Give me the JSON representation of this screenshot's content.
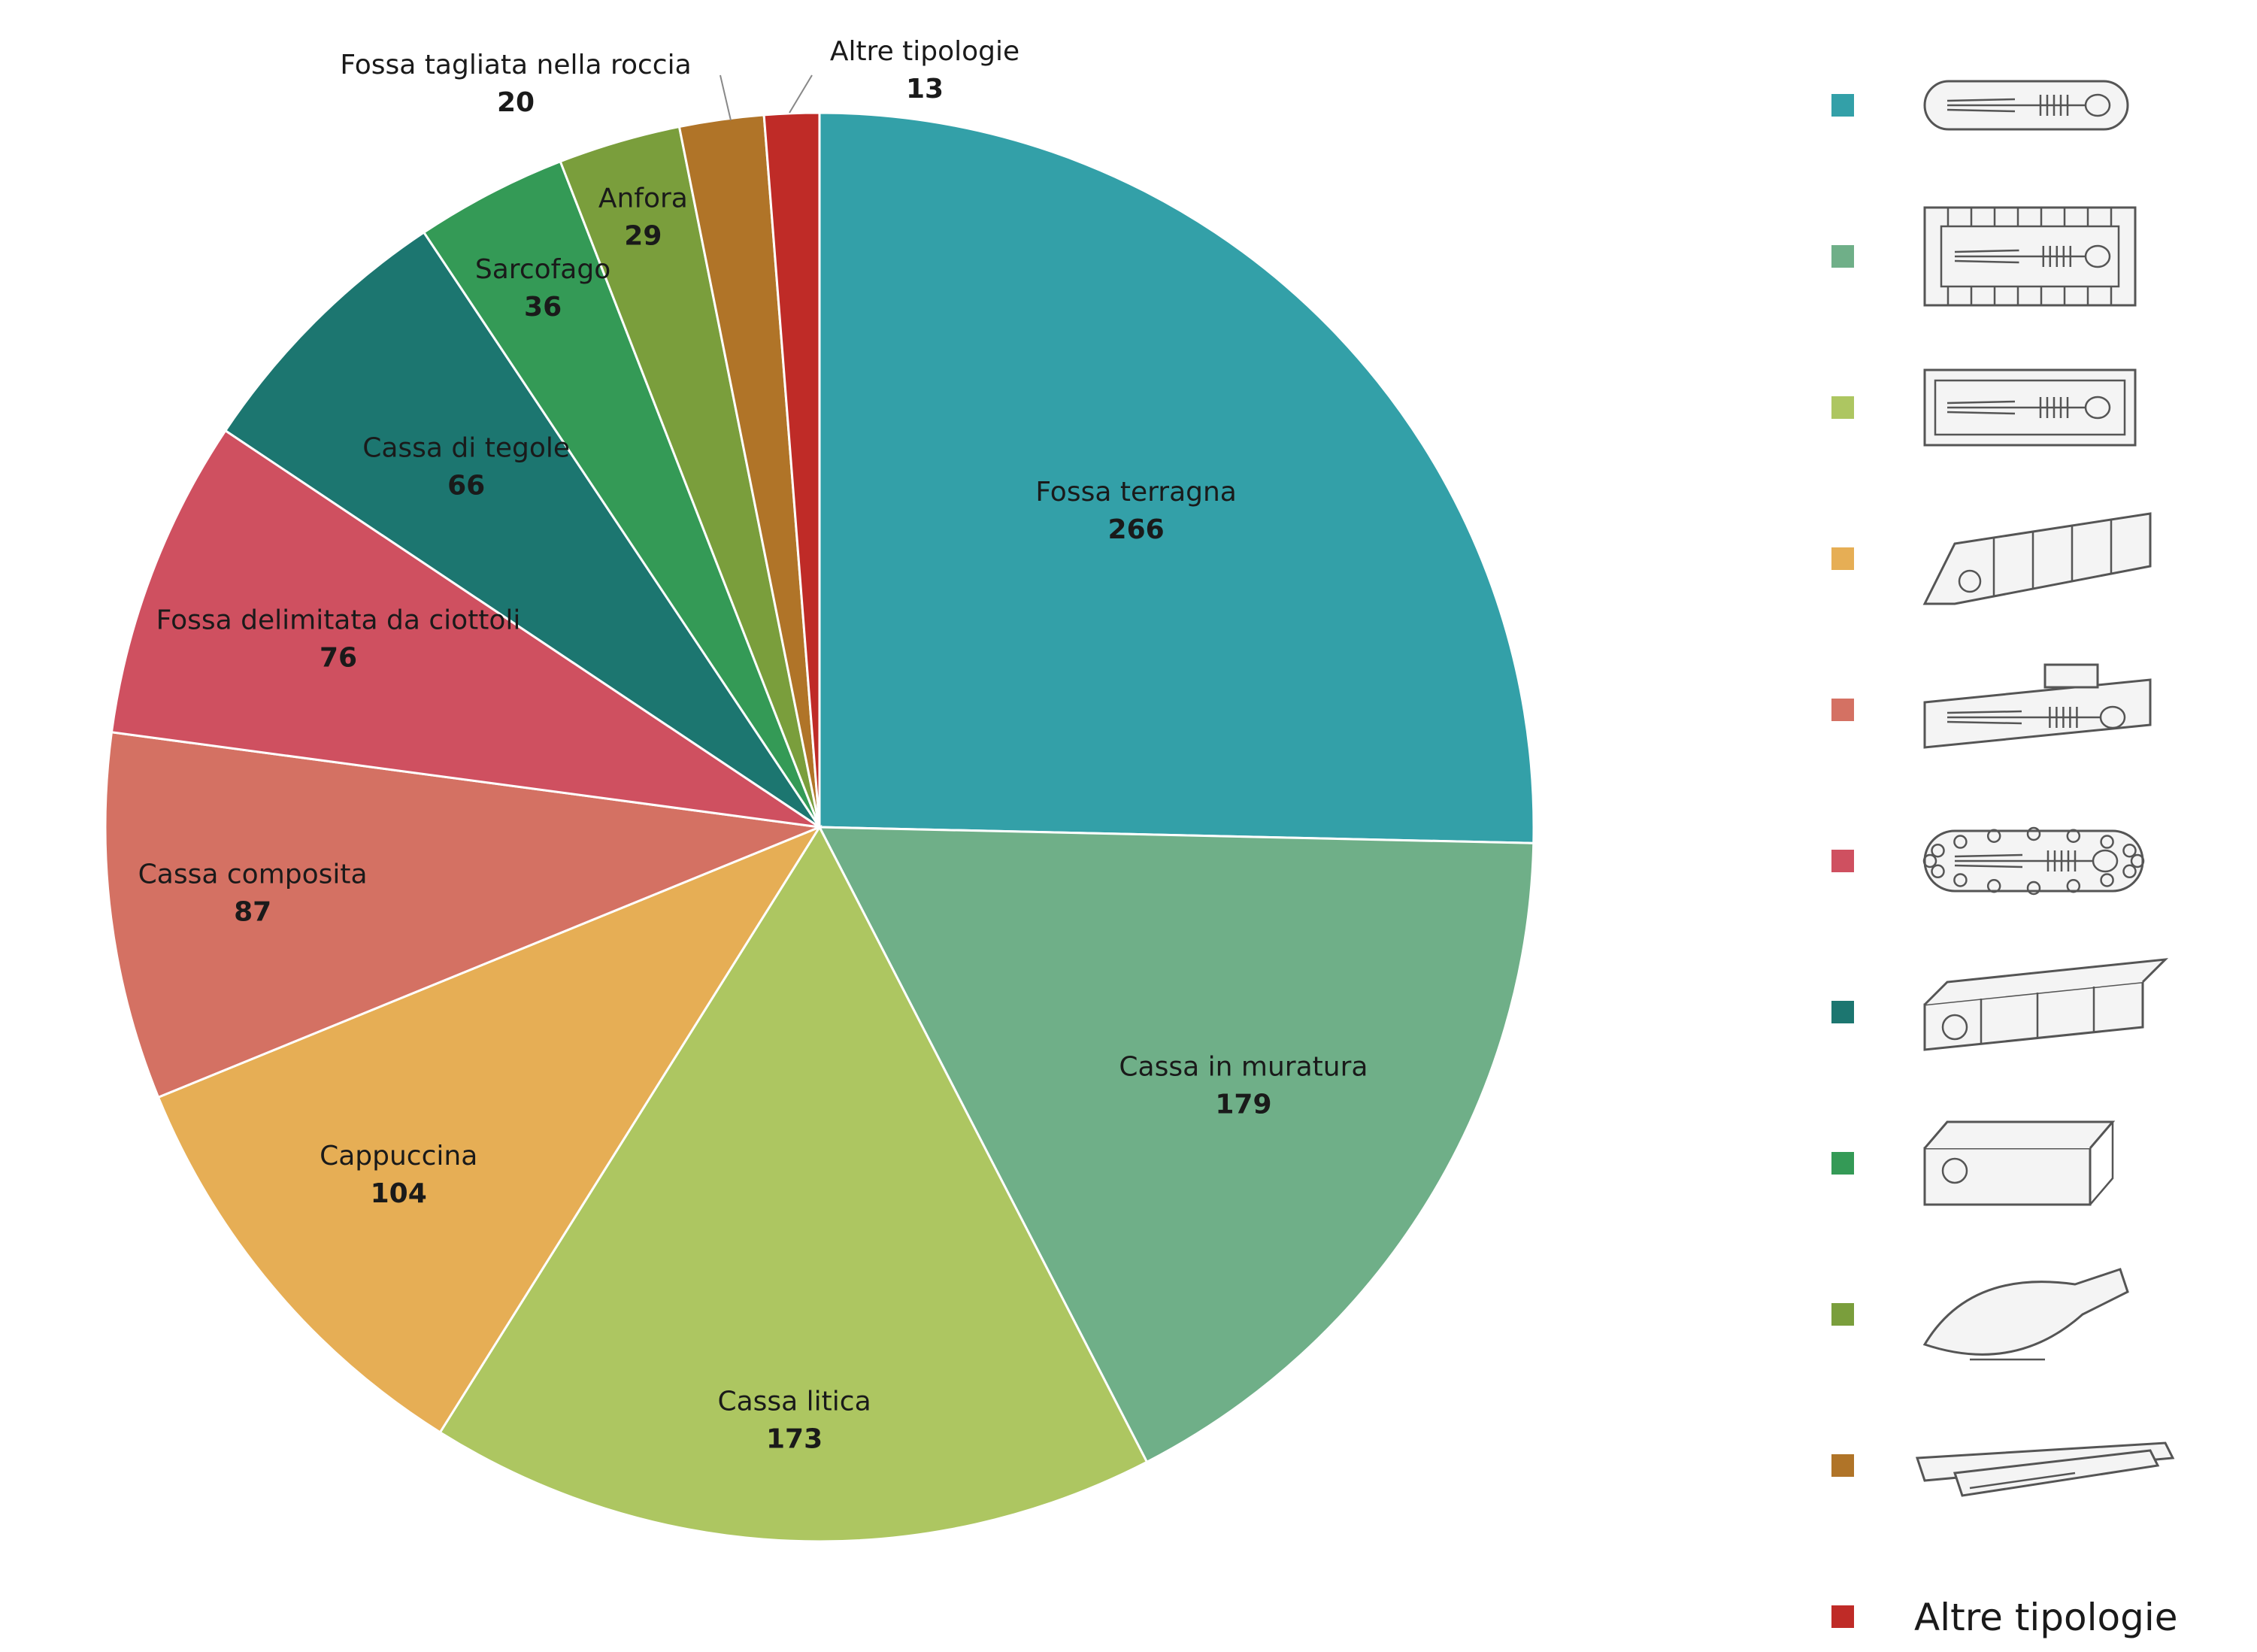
{
  "chart_data": {
    "type": "pie",
    "title": "",
    "slices": [
      {
        "label": "Fossa terragna",
        "value": 266,
        "color": "#33a0a8"
      },
      {
        "label": "Cassa in muratura",
        "value": 179,
        "color": "#6faf88"
      },
      {
        "label": "Cassa litica",
        "value": 173,
        "color": "#adc661"
      },
      {
        "label": "Cappuccina",
        "value": 104,
        "color": "#e6ae55"
      },
      {
        "label": "Cassa composita",
        "value": 87,
        "color": "#d47163"
      },
      {
        "label": "Fossa delimitata da ciottoli",
        "value": 76,
        "color": "#cf5060"
      },
      {
        "label": "Cassa di tegole",
        "value": 66,
        "color": "#1c7670"
      },
      {
        "label": "Sarcofago",
        "value": 36,
        "color": "#349a56"
      },
      {
        "label": "Anfora",
        "value": 29,
        "color": "#7a9e3c"
      },
      {
        "label": "Fossa tagliata nella roccia",
        "value": 20,
        "color": "#b07428"
      },
      {
        "label": "Altre tipologie",
        "value": 13,
        "color": "#bf2b27"
      }
    ],
    "legend": {
      "placement": "right",
      "items": [
        {
          "icon": "fossa-terragna-illustration",
          "color": "#33a0a8"
        },
        {
          "icon": "cassa-in-muratura-illustration",
          "color": "#6faf88"
        },
        {
          "icon": "cassa-litica-illustration",
          "color": "#adc661"
        },
        {
          "icon": "cappuccina-illustration",
          "color": "#e6ae55"
        },
        {
          "icon": "cassa-composita-illustration",
          "color": "#d47163"
        },
        {
          "icon": "fossa-ciottoli-illustration",
          "color": "#cf5060"
        },
        {
          "icon": "cassa-tegole-illustration",
          "color": "#1c7670"
        },
        {
          "icon": "sarcofago-illustration",
          "color": "#349a56"
        },
        {
          "icon": "anfora-illustration",
          "color": "#7a9e3c"
        },
        {
          "icon": "fossa-roccia-illustration",
          "color": "#b07428"
        },
        {
          "icon": "",
          "color": "#bf2b27",
          "label": "Altre tipologie"
        }
      ]
    }
  }
}
